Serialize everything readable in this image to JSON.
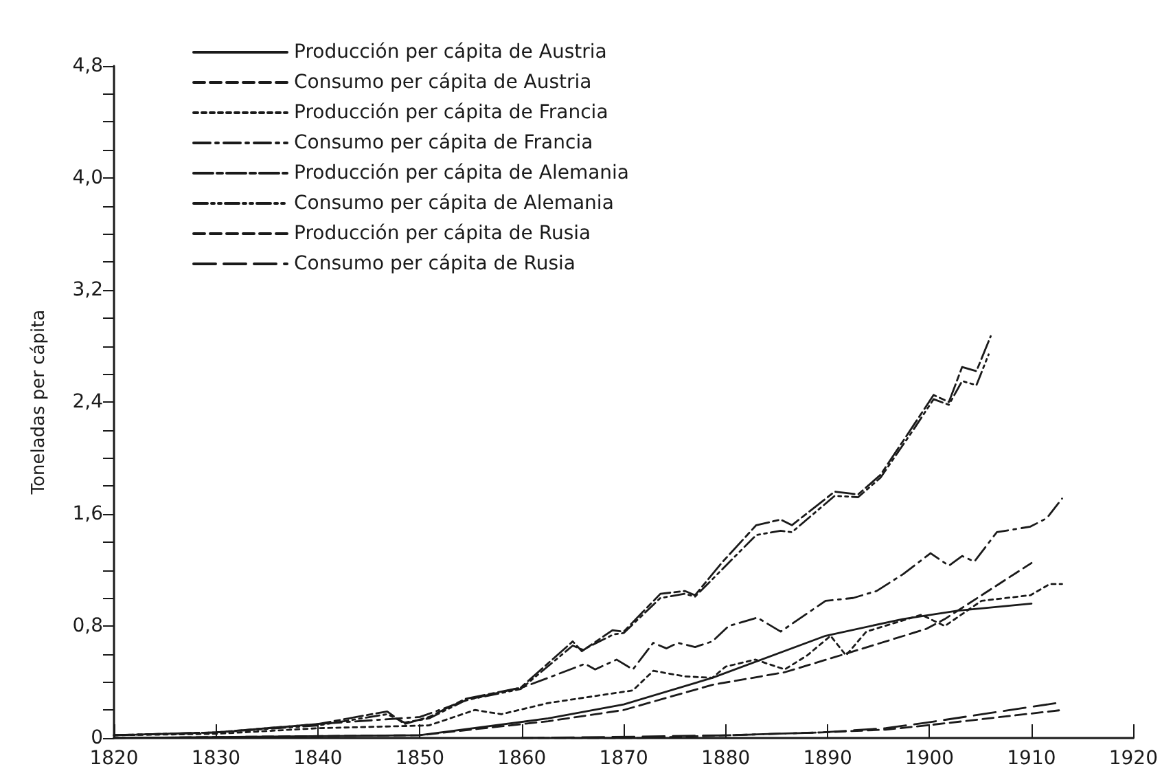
{
  "chart_data": {
    "type": "line",
    "ylabel": "Toneladas per cápita",
    "xlim": [
      1820,
      1920
    ],
    "xticks": [
      1820,
      1830,
      1840,
      1850,
      1860,
      1870,
      1880,
      1890,
      1900,
      1910,
      1920
    ],
    "ylim": [
      0,
      4.8
    ],
    "yticks": [
      0,
      {
        "value": 0.2,
        "label": null
      },
      {
        "value": 0.4,
        "label": null
      },
      {
        "value": 0.6,
        "label": null
      },
      {
        "value": 0.8,
        "label": "0,8"
      },
      {
        "value": 1.0,
        "label": null
      },
      {
        "value": 1.2,
        "label": null
      },
      {
        "value": 1.4,
        "label": null
      },
      {
        "value": 1.6,
        "label": "1,6"
      },
      {
        "value": 1.8,
        "label": null
      },
      {
        "value": 2.0,
        "label": null
      },
      {
        "value": 2.2,
        "label": null
      },
      {
        "value": 2.4,
        "label": "2,4"
      },
      {
        "value": 2.6,
        "label": null
      },
      {
        "value": 2.8,
        "label": null
      },
      {
        "value": 3.0,
        "label": null
      },
      {
        "value": 3.2,
        "label": "3,2"
      },
      {
        "value": 3.4,
        "label": null
      },
      {
        "value": 3.6,
        "label": null
      },
      {
        "value": 3.8,
        "label": null
      },
      {
        "value": 4.0,
        "label": "4,0"
      },
      {
        "value": 4.2,
        "label": null
      },
      {
        "value": 4.4,
        "label": null
      },
      {
        "value": 4.6,
        "label": null
      },
      {
        "value": 4.8,
        "label": "4,8"
      }
    ],
    "grid": false,
    "legend": "top left",
    "marker": "none",
    "series": [
      {
        "name": "Producción per cápita de Austria",
        "color": "#1a1a1a",
        "line_style": "solid",
        "x": [
          1820,
          1850,
          1862.6,
          1870,
          1878.7,
          1889.8,
          1897.4,
          1902.8,
          1910
        ],
        "values": [
          0.0,
          0.02,
          0.14,
          0.24,
          0.43,
          0.73,
          0.85,
          0.91,
          0.96
        ]
      },
      {
        "name": "Consumo per cápita de Austria",
        "color": "#1a1a1a",
        "line_style": "dashed",
        "x": [
          1820,
          1850,
          1862.6,
          1870,
          1878.7,
          1885.8,
          1891.7,
          1899.7,
          1901.5,
          1910
        ],
        "values": [
          0.0,
          0.02,
          0.12,
          0.2,
          0.38,
          0.47,
          0.6,
          0.78,
          0.85,
          1.25
        ]
      },
      {
        "name": "Producción per cápita de Francia",
        "color": "#1a1a1a",
        "line_style": "dotted",
        "x": [
          1820,
          1830,
          1840,
          1850.9,
          1855.4,
          1858,
          1862.6,
          1870.9,
          1872.9,
          1876,
          1878.7,
          1880,
          1882.9,
          1885.8,
          1888,
          1890.3,
          1891.8,
          1893.8,
          1899.2,
          1901.5,
          1905.1,
          1909.9,
          1911.8,
          1913
        ],
        "values": [
          0.02,
          0.03,
          0.07,
          0.09,
          0.2,
          0.17,
          0.25,
          0.34,
          0.48,
          0.44,
          0.43,
          0.51,
          0.56,
          0.49,
          0.59,
          0.73,
          0.59,
          0.76,
          0.88,
          0.8,
          0.98,
          1.02,
          1.1,
          1.1
        ]
      },
      {
        "name": "Consumo per cápita de Francia",
        "color": "#1a1a1a",
        "line_style": "dashdot",
        "x": [
          1820,
          1830,
          1840,
          1850,
          1855,
          1860,
          1862.6,
          1866.2,
          1867.2,
          1869.3,
          1870.9,
          1872.9,
          1874.2,
          1875.3,
          1877,
          1878.7,
          1880.3,
          1883.1,
          1885.4,
          1889.8,
          1892.5,
          1894.8,
          1897.4,
          1900.1,
          1901.9,
          1903.2,
          1904.4,
          1906.6,
          1909.9,
          1911.5,
          1913
        ],
        "values": [
          0.02,
          0.04,
          0.1,
          0.15,
          0.28,
          0.36,
          0.43,
          0.53,
          0.49,
          0.56,
          0.49,
          0.68,
          0.64,
          0.68,
          0.65,
          0.69,
          0.8,
          0.86,
          0.76,
          0.98,
          1.0,
          1.05,
          1.17,
          1.32,
          1.23,
          1.3,
          1.26,
          1.47,
          1.51,
          1.57,
          1.71
        ]
      },
      {
        "name": "Producción per cápita de Alemania",
        "color": "#1a1a1a",
        "line_style": "longdashdot",
        "x": [
          1820,
          1830,
          1840,
          1846.8,
          1848.5,
          1850.9,
          1854.5,
          1859.9,
          1865,
          1865.9,
          1868.9,
          1870,
          1873.6,
          1876,
          1877,
          1879.6,
          1883,
          1885.4,
          1886.5,
          1890.7,
          1893,
          1895.2,
          1898.4,
          1900.4,
          1901.9,
          1903.2,
          1904.6,
          1906
        ],
        "values": [
          0.02,
          0.04,
          0.1,
          0.19,
          0.1,
          0.15,
          0.28,
          0.36,
          0.69,
          0.62,
          0.77,
          0.76,
          1.03,
          1.05,
          1.02,
          1.25,
          1.52,
          1.56,
          1.52,
          1.76,
          1.74,
          1.88,
          2.23,
          2.45,
          2.4,
          2.65,
          2.62,
          2.87
        ]
      },
      {
        "name": "Consumo per cápita de Alemania",
        "color": "#1a1a1a",
        "line_style": "dashdotdot",
        "x": [
          1820,
          1830,
          1840,
          1846.8,
          1848.5,
          1850.9,
          1854.5,
          1859.9,
          1865,
          1866,
          1869,
          1870,
          1873.6,
          1876,
          1877,
          1879.6,
          1883,
          1885.4,
          1886.5,
          1890.7,
          1893,
          1895.2,
          1898.4,
          1900.4,
          1901.9,
          1903.2,
          1904.6,
          1905.8
        ],
        "values": [
          0.02,
          0.04,
          0.09,
          0.17,
          0.11,
          0.14,
          0.27,
          0.35,
          0.66,
          0.63,
          0.74,
          0.75,
          1.0,
          1.03,
          1.01,
          1.2,
          1.45,
          1.48,
          1.47,
          1.73,
          1.72,
          1.86,
          2.2,
          2.42,
          2.38,
          2.55,
          2.52,
          2.74
        ]
      },
      {
        "name": "Producción per cápita de Rusia",
        "color": "#1a1a1a",
        "line_style": "dashed",
        "x": [
          1860,
          1871.5,
          1880.4,
          1889.4,
          1895.7,
          1899.7,
          1913
        ],
        "values": [
          0.0,
          0.0,
          0.02,
          0.04,
          0.06,
          0.09,
          0.2
        ]
      },
      {
        "name": "Consumo per cápita de Rusia",
        "color": "#1a1a1a",
        "line_style": "longdash",
        "x": [
          1860,
          1871.5,
          1880.4,
          1889.4,
          1895.7,
          1899.7,
          1912.5
        ],
        "values": [
          0.0,
          0.01,
          0.02,
          0.04,
          0.07,
          0.11,
          0.25
        ]
      }
    ]
  }
}
